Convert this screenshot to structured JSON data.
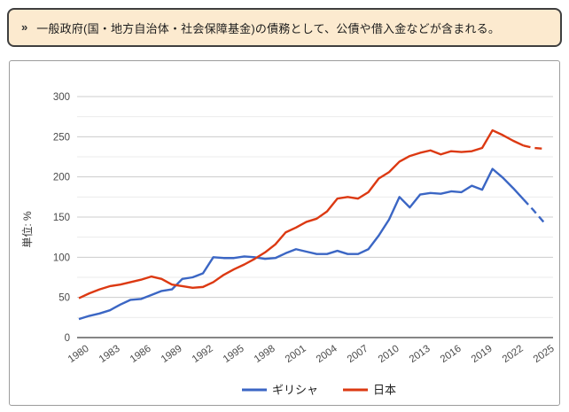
{
  "note": {
    "bullet": "»",
    "text": "一般政府(国・地方自治体・社会保障基金)の債務として、公債や借入金などが含まれる。"
  },
  "chart_data": {
    "type": "line",
    "title": "",
    "xlabel": "",
    "ylabel": "単位: %",
    "ylim": [
      0,
      300
    ],
    "y_major_step": 50,
    "y_minor_step": 25,
    "grid": true,
    "legend_position": "bottom",
    "x": [
      1980,
      1981,
      1982,
      1983,
      1984,
      1985,
      1986,
      1987,
      1988,
      1989,
      1990,
      1991,
      1992,
      1993,
      1994,
      1995,
      1996,
      1997,
      1998,
      1999,
      2000,
      2001,
      2002,
      2003,
      2004,
      2005,
      2006,
      2007,
      2008,
      2009,
      2010,
      2011,
      2012,
      2013,
      2014,
      2015,
      2016,
      2017,
      2018,
      2019,
      2020,
      2021,
      2022,
      2023,
      2024,
      2025
    ],
    "x_ticks": [
      1980,
      1983,
      1986,
      1989,
      1992,
      1995,
      1998,
      2001,
      2004,
      2007,
      2010,
      2013,
      2016,
      2019,
      2022,
      2025
    ],
    "dashed_from_year": 2023,
    "series": [
      {
        "key": "greece",
        "name": "ギリシャ",
        "color": "#3b66c4",
        "values": [
          23,
          27,
          30,
          34,
          41,
          47,
          48,
          53,
          58,
          60,
          73,
          75,
          80,
          100,
          99,
          99,
          101,
          100,
          98,
          99,
          105,
          110,
          107,
          104,
          104,
          108,
          104,
          104,
          110,
          127,
          147,
          175,
          162,
          178,
          180,
          179,
          182,
          181,
          189,
          184,
          210,
          199,
          186,
          172,
          158,
          143
        ]
      },
      {
        "key": "japan",
        "name": "日本",
        "color": "#dc3912",
        "values": [
          49,
          55,
          60,
          64,
          66,
          69,
          72,
          76,
          73,
          66,
          64,
          62,
          63,
          69,
          78,
          85,
          91,
          98,
          106,
          116,
          131,
          137,
          144,
          148,
          157,
          173,
          175,
          173,
          181,
          198,
          206,
          219,
          226,
          230,
          233,
          228,
          232,
          231,
          232,
          236,
          258,
          252,
          245,
          239,
          236,
          235
        ]
      }
    ],
    "axis_colors": {
      "major_grid": "#cccccc",
      "minor_grid": "#ebebeb",
      "zero_axis": "#3c3c3c",
      "tick_label": "#4a4a4a"
    }
  }
}
